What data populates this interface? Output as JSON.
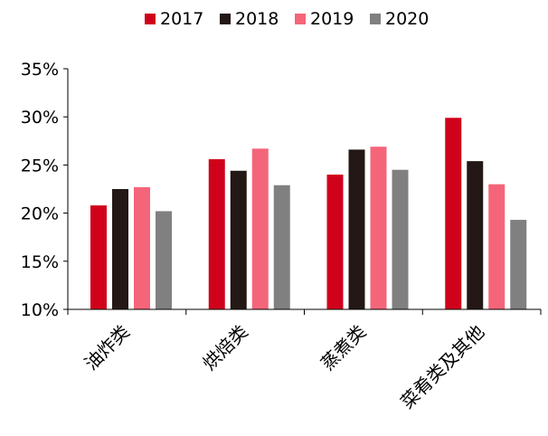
{
  "chart_data": {
    "type": "bar",
    "title": "",
    "xlabel": "",
    "ylabel": "",
    "categories": [
      "油炸类",
      "烘焙类",
      "蒸煮类",
      "菜肴类及其他"
    ],
    "series": [
      {
        "name": "2017",
        "color": "#D0021B",
        "values": [
          20.8,
          25.6,
          24.0,
          29.9
        ]
      },
      {
        "name": "2018",
        "color": "#231815",
        "values": [
          22.5,
          24.4,
          26.6,
          25.4
        ]
      },
      {
        "name": "2019",
        "color": "#F5657A",
        "values": [
          22.7,
          26.7,
          26.9,
          23.0
        ]
      },
      {
        "name": "2020",
        "color": "#808080",
        "values": [
          20.2,
          22.9,
          24.5,
          19.3
        ]
      }
    ],
    "ylim": [
      10,
      35
    ],
    "yticks": [
      "10%",
      "15%",
      "20%",
      "25%",
      "30%",
      "35%"
    ],
    "grid": false,
    "legend_position": "top-center"
  }
}
